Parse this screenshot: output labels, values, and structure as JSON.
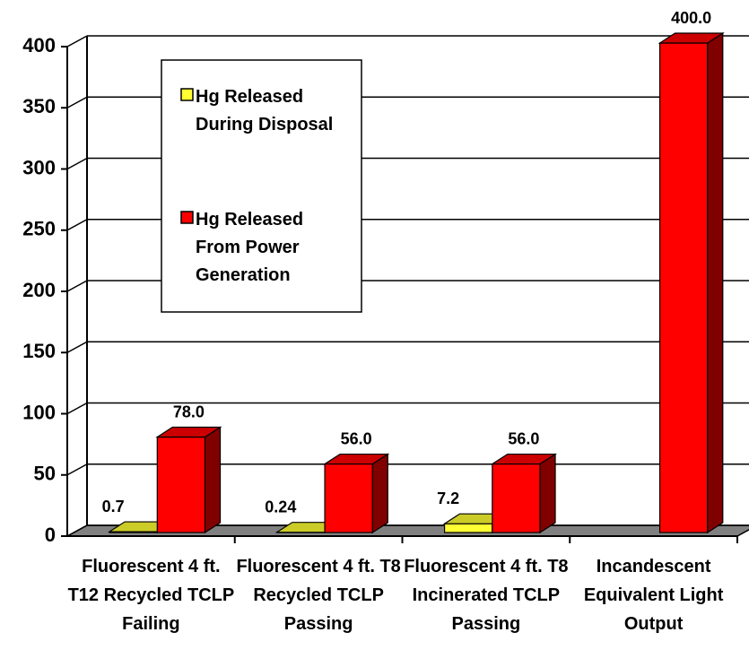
{
  "chart_data": {
    "type": "bar3d",
    "categories": [
      "Fluorescent 4 ft. T12 Recycled TCLP Failing",
      "Fluorescent 4 ft. T8 Recycled TCLP Passing",
      "Fluorescent 4 ft. T8 Incinerated TCLP Passing",
      "Incandescent Equivalent Light Output"
    ],
    "series": [
      {
        "name": "Hg Released During Disposal",
        "color": "#ffff33",
        "values": [
          0.7,
          0.24,
          7.2,
          null
        ],
        "value_labels": [
          "0.7",
          "0.24",
          "7.2",
          null
        ]
      },
      {
        "name": "Hg Released From Power Generation",
        "color": "#ff0000",
        "values": [
          78,
          56,
          56,
          400
        ],
        "value_labels": [
          "78.0",
          "56.0",
          "56.0",
          "400.0"
        ]
      }
    ],
    "ylim": [
      0,
      400
    ],
    "yticks": [
      0,
      50,
      100,
      150,
      200,
      250,
      300,
      350,
      400
    ],
    "grid": true
  }
}
